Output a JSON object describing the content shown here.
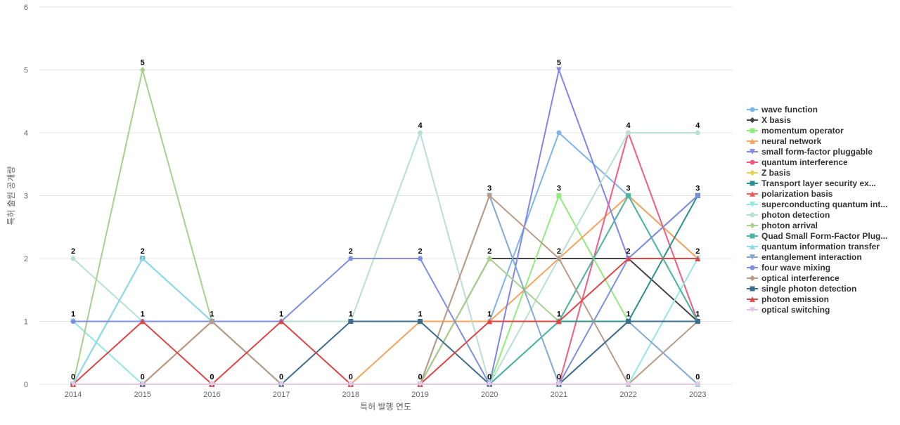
{
  "chart_data": {
    "type": "line",
    "title": "",
    "xlabel": "특허 발행 연도",
    "ylabel": "특허 출원 공개량",
    "x": [
      "2014",
      "2015",
      "2016",
      "2017",
      "2018",
      "2019",
      "2020",
      "2021",
      "2022",
      "2023"
    ],
    "ylim": [
      0,
      6
    ],
    "yticks": [
      0,
      1,
      2,
      3,
      4,
      5,
      6
    ],
    "grid": true,
    "legend_position": "right",
    "top_labels": [
      2,
      5,
      1,
      1,
      2,
      4,
      3,
      5,
      4,
      4
    ],
    "series": [
      {
        "name": "wave function",
        "color": "#7cb5ec",
        "marker": "circle",
        "values": [
          1,
          1,
          1,
          1,
          1,
          1,
          1,
          4,
          3,
          2
        ]
      },
      {
        "name": "X basis",
        "color": "#434348",
        "marker": "diamond",
        "values": [
          0,
          0,
          1,
          0,
          0,
          0,
          2,
          2,
          2,
          1
        ]
      },
      {
        "name": "momentum operator",
        "color": "#90ed7d",
        "marker": "square",
        "values": [
          0,
          0,
          0,
          0,
          0,
          0,
          0,
          3,
          1,
          1
        ]
      },
      {
        "name": "neural network",
        "color": "#f7a35c",
        "marker": "triangle",
        "values": [
          0,
          0,
          1,
          0,
          0,
          1,
          1,
          2,
          3,
          2
        ]
      },
      {
        "name": "small form-factor pluggable",
        "color": "#8085e9",
        "marker": "triangle-down",
        "values": [
          0,
          0,
          0,
          0,
          0,
          0,
          0,
          5,
          2,
          3
        ]
      },
      {
        "name": "quantum interference",
        "color": "#f15c80",
        "marker": "circle",
        "values": [
          0,
          0,
          0,
          0,
          0,
          0,
          0,
          0,
          4,
          1
        ]
      },
      {
        "name": "Z basis",
        "color": "#e4d354",
        "marker": "diamond",
        "values": [
          0,
          0,
          0,
          0,
          0,
          0,
          0,
          0,
          0,
          0
        ]
      },
      {
        "name": "Transport layer security ex...",
        "color": "#2b908f",
        "marker": "square",
        "values": [
          0,
          0,
          0,
          0,
          0,
          0,
          0,
          1,
          1,
          3
        ]
      },
      {
        "name": "polarization basis",
        "color": "#f45b5b",
        "marker": "triangle",
        "values": [
          0,
          0,
          0,
          0,
          0,
          0,
          0,
          0,
          0,
          0
        ]
      },
      {
        "name": "superconducting quantum int...",
        "color": "#91e8e1",
        "marker": "triangle-down",
        "values": [
          1,
          0,
          0,
          0,
          0,
          0,
          0,
          0,
          0,
          2
        ]
      },
      {
        "name": "photon detection",
        "color": "#b8e0d2",
        "marker": "circle",
        "values": [
          2,
          1,
          1,
          1,
          1,
          4,
          0,
          2,
          4,
          4
        ]
      },
      {
        "name": "photon arrival",
        "color": "#a8d08d",
        "marker": "diamond",
        "values": [
          0,
          5,
          1,
          0,
          0,
          0,
          2,
          1,
          3,
          1
        ]
      },
      {
        "name": "Quad Small Form-Factor Plug...",
        "color": "#4db6a0",
        "marker": "square",
        "values": [
          0,
          2,
          1,
          0,
          0,
          0,
          0,
          1,
          3,
          1
        ]
      },
      {
        "name": "quantum information transfer",
        "color": "#8fd8ee",
        "marker": "triangle",
        "values": [
          0,
          2,
          1,
          0,
          0,
          0,
          0,
          0,
          0,
          0
        ]
      },
      {
        "name": "entanglement interaction",
        "color": "#81a9d8",
        "marker": "triangle-down",
        "values": [
          0,
          0,
          0,
          0,
          0,
          0,
          3,
          0,
          1,
          0
        ]
      },
      {
        "name": "four wave mixing",
        "color": "#7f8fe0",
        "marker": "circle",
        "values": [
          1,
          1,
          1,
          1,
          2,
          2,
          0,
          0,
          2,
          3
        ]
      },
      {
        "name": "optical interference",
        "color": "#b99b86",
        "marker": "diamond",
        "values": [
          0,
          0,
          1,
          0,
          0,
          0,
          3,
          2,
          0,
          1
        ]
      },
      {
        "name": "single photon detection",
        "color": "#3e6e8e",
        "marker": "square",
        "values": [
          0,
          0,
          0,
          0,
          1,
          1,
          0,
          0,
          1,
          1
        ]
      },
      {
        "name": "photon emission",
        "color": "#e04545",
        "marker": "triangle",
        "values": [
          0,
          1,
          0,
          1,
          0,
          0,
          1,
          1,
          2,
          2
        ]
      },
      {
        "name": "optical switching",
        "color": "#e6c8e6",
        "marker": "triangle-down",
        "values": [
          0,
          0,
          0,
          0,
          0,
          0,
          0,
          0,
          0,
          0
        ]
      }
    ]
  }
}
